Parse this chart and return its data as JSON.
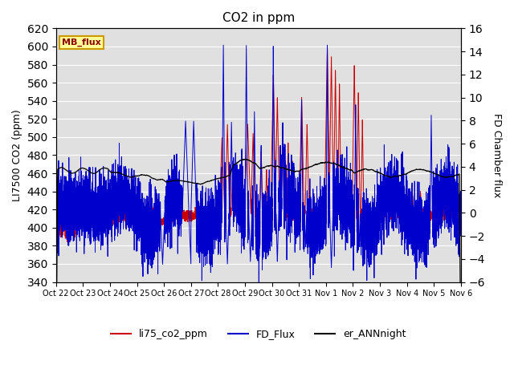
{
  "title": "CO2 in ppm",
  "ylabel_left": "LI7500 CO2 (ppm)",
  "ylabel_right": "FD Chamber flux",
  "ylim_left": [
    340,
    620
  ],
  "ylim_right": [
    -6,
    16
  ],
  "yticks_left": [
    340,
    360,
    380,
    400,
    420,
    440,
    460,
    480,
    500,
    520,
    540,
    560,
    580,
    600,
    620
  ],
  "yticks_right": [
    -6,
    -4,
    -2,
    0,
    2,
    4,
    6,
    8,
    10,
    12,
    14,
    16
  ],
  "xtick_labels": [
    "Oct 22",
    "Oct 23",
    "Oct 24",
    "Oct 25",
    "Oct 26",
    "Oct 27",
    "Oct 28",
    "Oct 29",
    "Oct 30",
    "Oct 31",
    "Nov 1",
    "Nov 2",
    "Nov 3",
    "Nov 4",
    "Nov 5",
    "Nov 6"
  ],
  "color_red": "#cc0000",
  "color_blue": "#0000cc",
  "color_black": "#000000",
  "mb_flux_box_color": "#ffff99",
  "mb_flux_box_edge": "#cc9900",
  "background_color": "#e0e0e0",
  "legend_labels": [
    "li75_co2_ppm",
    "FD_Flux",
    "er_ANNnight"
  ],
  "title_fontsize": 11
}
